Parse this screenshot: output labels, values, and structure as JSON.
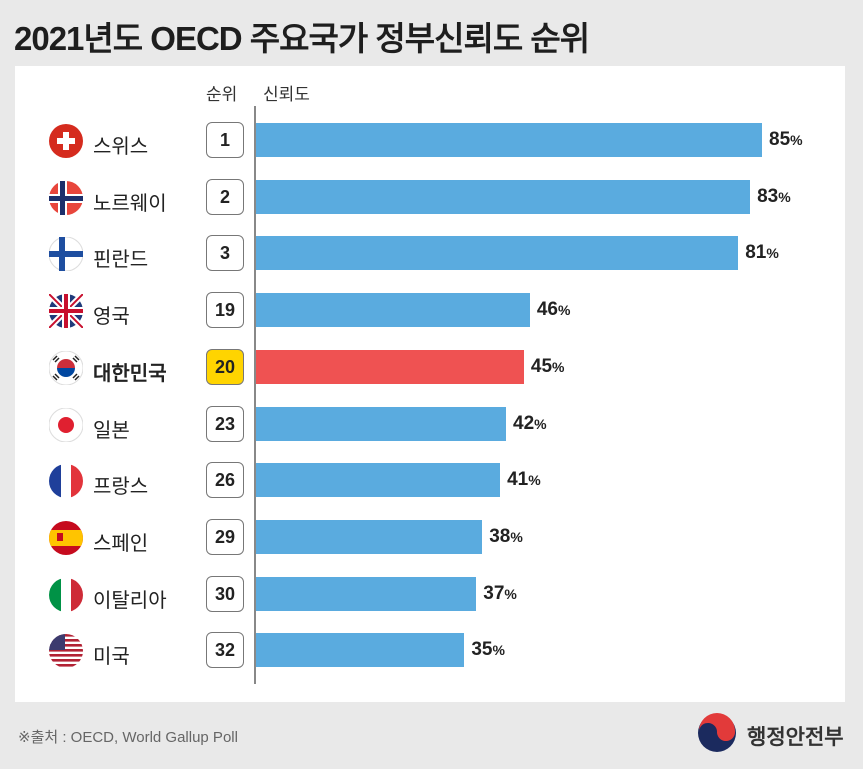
{
  "title": "2021년도 OECD 주요국가 정부신뢰도 순위",
  "header": {
    "rank": "순위",
    "trust": "신뢰도"
  },
  "chart_data": {
    "type": "bar",
    "orientation": "horizontal",
    "categories": [
      "스위스",
      "노르웨이",
      "핀란드",
      "영국",
      "대한민국",
      "일본",
      "프랑스",
      "스페인",
      "이탈리아",
      "미국"
    ],
    "ranks": [
      "1",
      "2",
      "3",
      "19",
      "20",
      "23",
      "26",
      "29",
      "30",
      "32"
    ],
    "values": [
      85,
      83,
      81,
      46,
      45,
      42,
      41,
      38,
      37,
      35
    ],
    "unit": "%",
    "highlight": "대한민국",
    "flags": [
      "switzerland-flag-icon",
      "norway-flag-icon",
      "finland-flag-icon",
      "uk-flag-icon",
      "korea-flag-icon",
      "japan-flag-icon",
      "france-flag-icon",
      "spain-flag-icon",
      "italy-flag-icon",
      "usa-flag-icon"
    ],
    "xlim": [
      0,
      85
    ],
    "grid": false,
    "colors": {
      "bar": "#5aabdf",
      "highlight_bar": "#ef5252",
      "highlight_rank": "#ffd400"
    }
  },
  "footer": {
    "source": "※출처 : OECD, World Gallup Poll",
    "ministry": "행정안전부"
  }
}
